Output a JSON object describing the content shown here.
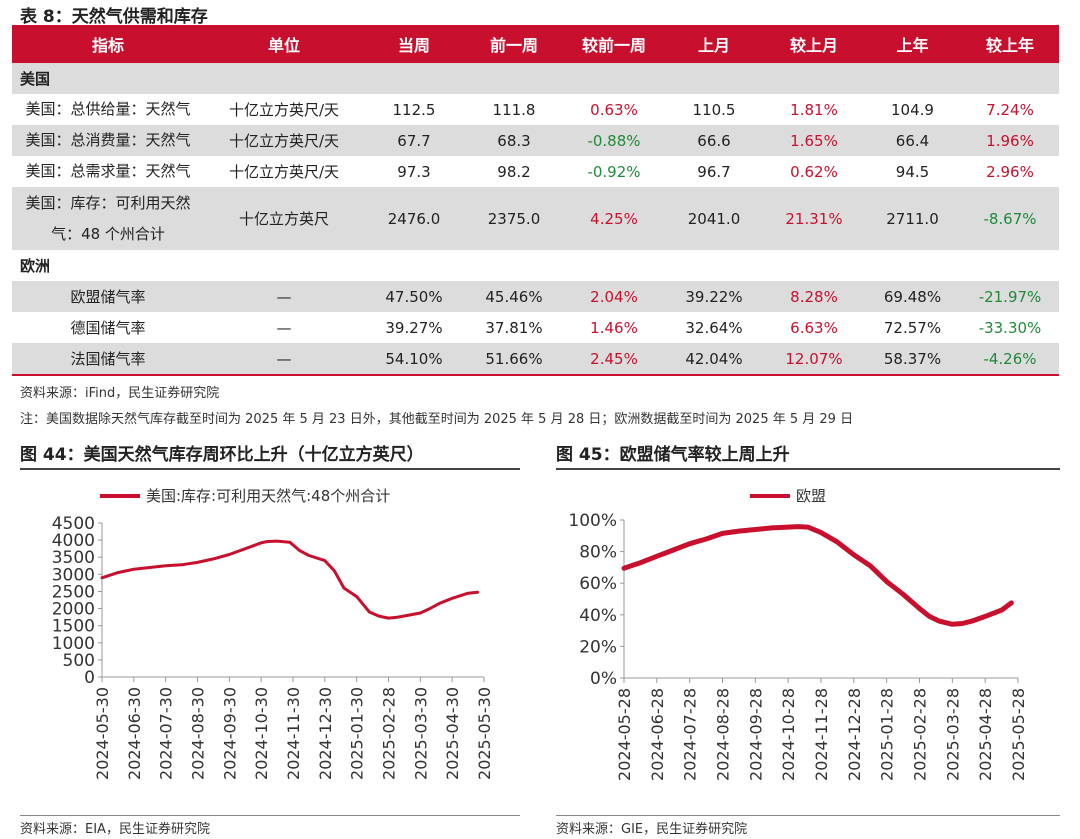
{
  "table_title": "表 8：天然气供需和库存",
  "headers": [
    "指标",
    "单位",
    "当周",
    "前一周",
    "较前一周",
    "上月",
    "较上月",
    "上年",
    "较上年"
  ],
  "section_us": "美国",
  "rows_us": [
    {
      "name": "美国：总供给量：天然气",
      "unit": "十亿立方英尺/天",
      "cur": "112.5",
      "prev": "111.8",
      "chg_prev": "0.63%",
      "month": "110.5",
      "chg_month": "1.81%",
      "year": "104.9",
      "chg_year": "7.24%"
    },
    {
      "name": "美国：总消费量：天然气",
      "unit": "十亿立方英尺/天",
      "cur": "67.7",
      "prev": "68.3",
      "chg_prev": "-0.88%",
      "month": "66.6",
      "chg_month": "1.65%",
      "year": "66.4",
      "chg_year": "1.96%"
    },
    {
      "name": "美国：总需求量：天然气",
      "unit": "十亿立方英尺/天",
      "cur": "97.3",
      "prev": "98.2",
      "chg_prev": "-0.92%",
      "month": "96.7",
      "chg_month": "0.62%",
      "year": "94.5",
      "chg_year": "2.96%"
    },
    {
      "name_line1": "美国：库存：可利用天然",
      "name_line2": "气：48 个州合计",
      "unit": "十亿立方英尺",
      "cur": "2476.0",
      "prev": "2375.0",
      "chg_prev": "4.25%",
      "month": "2041.0",
      "chg_month": "21.31%",
      "year": "2711.0",
      "chg_year": "-8.67%"
    }
  ],
  "section_eu": "欧洲",
  "rows_eu": [
    {
      "name": "欧盟储气率",
      "unit": "—",
      "cur": "47.50%",
      "prev": "45.46%",
      "chg_prev": "2.04%",
      "month": "39.22%",
      "chg_month": "8.28%",
      "year": "69.48%",
      "chg_year": "-21.97%"
    },
    {
      "name": "德国储气率",
      "unit": "—",
      "cur": "39.27%",
      "prev": "37.81%",
      "chg_prev": "1.46%",
      "month": "32.64%",
      "chg_month": "6.63%",
      "year": "72.57%",
      "chg_year": "-33.30%"
    },
    {
      "name": "法国储气率",
      "unit": "—",
      "cur": "54.10%",
      "prev": "51.66%",
      "chg_prev": "2.45%",
      "month": "42.04%",
      "chg_month": "12.07%",
      "year": "58.37%",
      "chg_year": "-4.26%"
    }
  ],
  "source_table": "资料来源：iFind，民生证券研究院",
  "note": "注：美国数据除天然气库存截至时间为 2025 年 5 月 23 日外，其他截至时间为 2025 年 5 月 28 日；欧洲数据截至时间为 2025 年 5 月 29 日",
  "fig44_title": "图 44：美国天然气库存周环比上升（十亿立方英尺）",
  "fig45_title": "图 45：欧盟储气率较上周上升",
  "source_fig44": "资料来源：EIA，民生证券研究院",
  "source_fig45": "资料来源：GIE，民生证券研究院",
  "colors": {
    "accent": "#c8102e",
    "positive": "#c8102e",
    "negative": "#1f8a3a"
  },
  "chart_data": [
    {
      "type": "line",
      "title": "图 44：美国天然气库存周环比上升（十亿立方英尺）",
      "legend": "美国:库存:可利用天然气:48个州合计",
      "ylim": [
        0,
        4500
      ],
      "yticks": [
        "0",
        "500",
        "1000",
        "1500",
        "2000",
        "2500",
        "3000",
        "3500",
        "4000",
        "4500"
      ],
      "ytick_values": [
        0,
        500,
        1000,
        1500,
        2000,
        2500,
        3000,
        3500,
        4000,
        4500
      ],
      "xlim": [
        0,
        12
      ],
      "xticks": [
        "2024-05-30",
        "2024-06-30",
        "2024-07-30",
        "2024-08-30",
        "2024-09-30",
        "2024-10-30",
        "2024-11-30",
        "2024-12-30",
        "2025-01-30",
        "2025-02-28",
        "2025-03-30",
        "2025-04-30",
        "2025-05-30"
      ],
      "x": [
        0,
        0.5,
        1,
        1.5,
        2,
        2.5,
        3,
        3.5,
        4,
        4.5,
        5,
        5.2,
        5.5,
        5.9,
        6.2,
        6.5,
        7,
        7.3,
        7.6,
        8,
        8.4,
        8.7,
        9,
        9.3,
        9.6,
        10,
        10.3,
        10.6,
        11,
        11.5,
        11.8
      ],
      "values": [
        2900,
        3050,
        3150,
        3200,
        3250,
        3280,
        3350,
        3450,
        3580,
        3750,
        3920,
        3960,
        3970,
        3940,
        3700,
        3550,
        3400,
        3100,
        2600,
        2350,
        1900,
        1780,
        1720,
        1750,
        1800,
        1870,
        2000,
        2150,
        2300,
        2450,
        2476
      ]
    },
    {
      "type": "line",
      "title": "图 45：欧盟储气率较上周上升",
      "legend": "欧盟",
      "ylim": [
        0,
        100
      ],
      "yticks": [
        "0%",
        "20%",
        "40%",
        "60%",
        "80%",
        "100%"
      ],
      "ytick_values": [
        0,
        20,
        40,
        60,
        80,
        100
      ],
      "xlim": [
        0,
        12
      ],
      "xticks": [
        "2024-05-28",
        "2024-06-28",
        "2024-07-28",
        "2024-08-28",
        "2024-09-28",
        "2024-10-28",
        "2024-11-28",
        "2024-12-28",
        "2025-01-28",
        "2025-02-28",
        "2025-03-28",
        "2025-04-28",
        "2025-05-28"
      ],
      "x": [
        0,
        0.5,
        1,
        1.5,
        2,
        2.5,
        3,
        3.5,
        4,
        4.5,
        5,
        5.3,
        5.6,
        6,
        6.5,
        7,
        7.5,
        8,
        8.5,
        9,
        9.3,
        9.6,
        10,
        10.3,
        10.6,
        11,
        11.5,
        11.8
      ],
      "values": [
        69.5,
        73,
        77,
        81,
        85,
        88,
        91.5,
        93,
        94,
        95,
        95.5,
        95.8,
        95.5,
        92,
        86,
        78,
        71,
        61,
        53,
        44,
        39,
        36,
        34,
        34.5,
        36,
        39,
        43,
        47.5
      ]
    }
  ]
}
